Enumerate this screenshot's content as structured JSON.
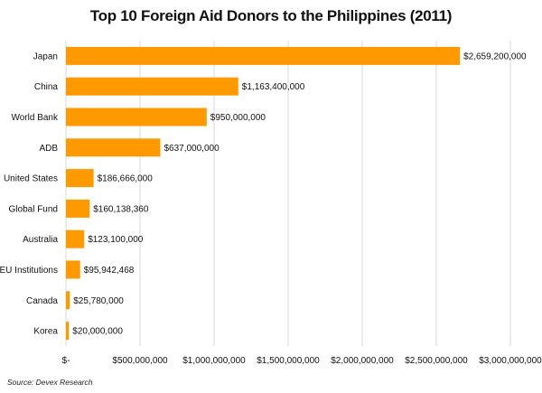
{
  "chart_data": {
    "type": "bar",
    "orientation": "horizontal",
    "title": "Top 10 Foreign Aid Donors to the Philippines (2011)",
    "source": "Source: Devex Research",
    "categories": [
      "Japan",
      "China",
      "World Bank",
      "ADB",
      "United States",
      "Global Fund",
      "Australia",
      "EU Institutions",
      "Canada",
      "Korea"
    ],
    "values": [
      2659200000,
      1163400000,
      950000000,
      637000000,
      186666000,
      160138360,
      123100000,
      95942468,
      25780000,
      20000000
    ],
    "value_labels": [
      "$2,659,200,000",
      "$1,163,400,000",
      "$950,000,000",
      "$637,000,000",
      "$186,666,000",
      "$160,138,360",
      "$123,100,000",
      "$95,942,468",
      "$25,780,000",
      "$20,000,000"
    ],
    "xlim": [
      0,
      3000000000
    ],
    "x_ticks": [
      0,
      500000000,
      1000000000,
      1500000000,
      2000000000,
      2500000000,
      3000000000
    ],
    "x_tick_labels": [
      "$-",
      "$500,000,000",
      "$1,000,000,000",
      "$1,500,000,000",
      "$2,000,000,000",
      "$2,500,000,000",
      "$3,000,000,000"
    ],
    "xlabel": "",
    "ylabel": "",
    "grid": "vertical",
    "bar_color": "#FF9900",
    "grid_color": "#D9D9D9"
  }
}
